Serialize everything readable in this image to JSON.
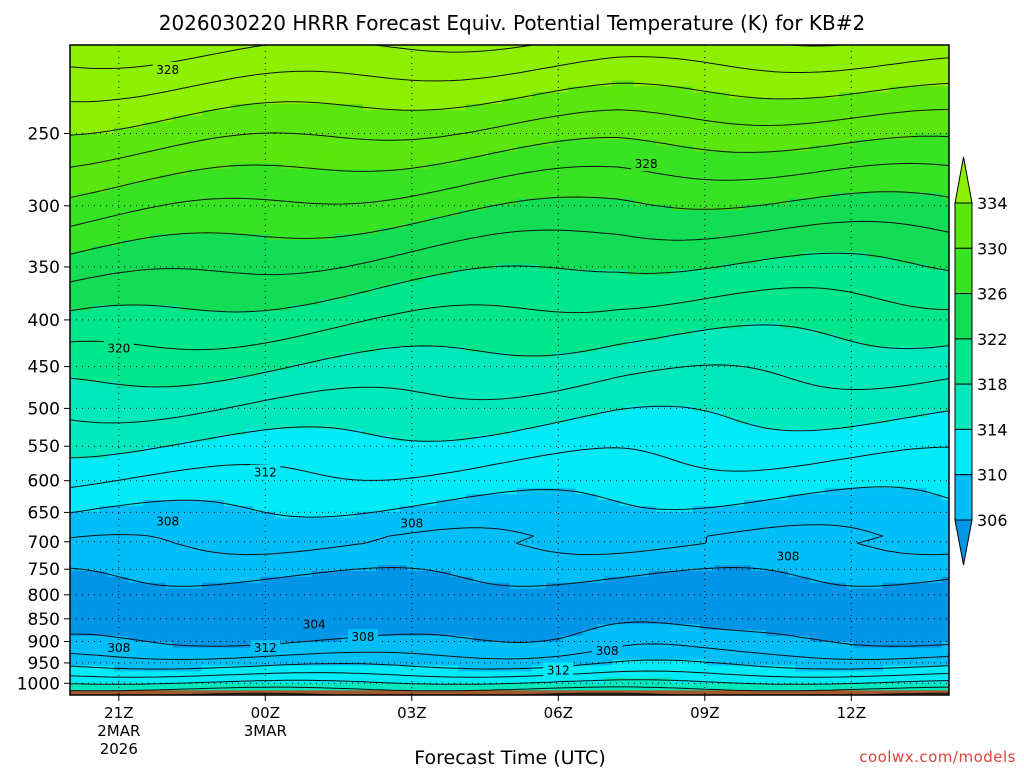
{
  "title": "2026030220 HRRR Forecast Equiv. Potential Temperature (K) for KB#2",
  "xlabel": "Forecast Time (UTC)",
  "credit": "coolwx.com/models",
  "chart_data": {
    "type": "heatmap",
    "title": "2026030220 HRRR Forecast Equiv. Potential Temperature (K) for KB#2",
    "xlabel": "Forecast Time (UTC)",
    "ylabel": "",
    "x_ticks": [
      {
        "label": "21Z",
        "sub": [
          "2MAR",
          "2026"
        ],
        "hour": -3
      },
      {
        "label": "00Z",
        "sub": [
          "3MAR"
        ],
        "hour": 0
      },
      {
        "label": "03Z",
        "sub": [],
        "hour": 3
      },
      {
        "label": "06Z",
        "sub": [],
        "hour": 6
      },
      {
        "label": "09Z",
        "sub": [],
        "hour": 9
      },
      {
        "label": "12Z",
        "sub": [],
        "hour": 12
      }
    ],
    "xlim_hours": [
      -4,
      14
    ],
    "y_ticks": [
      250,
      300,
      350,
      400,
      450,
      500,
      550,
      600,
      650,
      700,
      750,
      800,
      850,
      900,
      950,
      1000
    ],
    "ylim": [
      1030,
      200
    ],
    "y_scale": "log-pressure",
    "colorbar": {
      "levels": [
        306,
        310,
        314,
        318,
        322,
        326,
        330,
        334
      ],
      "extend": "both"
    },
    "color_bins": [
      {
        "range": [
          302,
          306
        ],
        "color": "#0095e6"
      },
      {
        "range": [
          306,
          310
        ],
        "color": "#00bef8"
      },
      {
        "range": [
          310,
          314
        ],
        "color": "#00eaf7"
      },
      {
        "range": [
          314,
          318
        ],
        "color": "#00e8bc"
      },
      {
        "range": [
          318,
          322
        ],
        "color": "#00e68d"
      },
      {
        "range": [
          322,
          326
        ],
        "color": "#12dd55"
      },
      {
        "range": [
          326,
          330
        ],
        "color": "#37e323"
      },
      {
        "range": [
          330,
          334
        ],
        "color": "#5be60e"
      },
      {
        "range": [
          334,
          338
        ],
        "color": "#8cf000"
      }
    ],
    "contour_interval": 2,
    "contour_labels": [
      {
        "value": 328,
        "hour": -2.0,
        "pressure": 213
      },
      {
        "value": 328,
        "hour": 7.8,
        "pressure": 270
      },
      {
        "value": 320,
        "hour": -3.0,
        "pressure": 430
      },
      {
        "value": 312,
        "hour": 0.0,
        "pressure": 588
      },
      {
        "value": 308,
        "hour": -2.0,
        "pressure": 665
      },
      {
        "value": 308,
        "hour": 3.0,
        "pressure": 668
      },
      {
        "value": 308,
        "hour": 10.7,
        "pressure": 726
      },
      {
        "value": 304,
        "hour": 1.0,
        "pressure": 862
      },
      {
        "value": 308,
        "hour": 2.0,
        "pressure": 890
      },
      {
        "value": 312,
        "hour": 0.0,
        "pressure": 915
      },
      {
        "value": 308,
        "hour": -3.0,
        "pressure": 915
      },
      {
        "value": 308,
        "hour": 7.0,
        "pressure": 922
      },
      {
        "value": 312,
        "hour": 6.0,
        "pressure": 968
      }
    ],
    "ground_color": "#a15a2f"
  }
}
